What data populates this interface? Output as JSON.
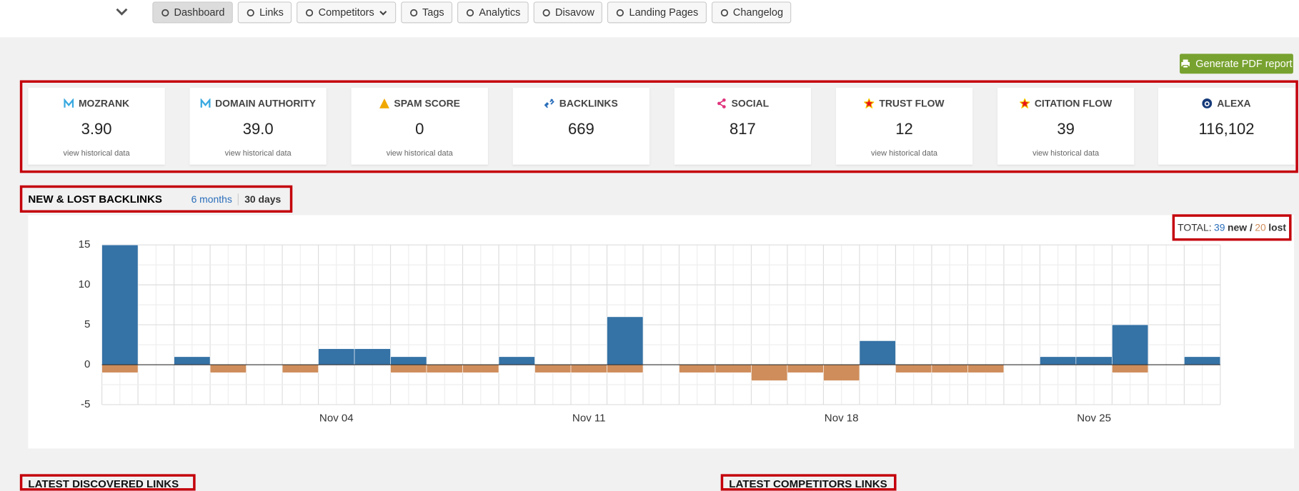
{
  "nav": {
    "items": [
      "Dashboard",
      "Links",
      "Competitors",
      "Tags",
      "Analytics",
      "Disavow",
      "Landing Pages",
      "Changelog"
    ]
  },
  "report_button": "Generate PDF report",
  "metrics": [
    {
      "label": "MOZRANK",
      "value": "3.90",
      "link": "view historical data"
    },
    {
      "label": "DOMAIN AUTHORITY",
      "value": "39.0",
      "link": "view historical data"
    },
    {
      "label": "SPAM SCORE",
      "value": 0,
      "link": "view historical data"
    },
    {
      "label": "BACKLINKS",
      "value": 669
    },
    {
      "label": "SOCIAL",
      "value": 817
    },
    {
      "label": "TRUST FLOW",
      "value": 12,
      "link": "view historical data"
    },
    {
      "label": "CITATION FLOW",
      "value": 39,
      "link": "view historical data"
    },
    {
      "label": "ALEXA",
      "value": "116,102"
    }
  ],
  "backlinks": {
    "title": "NEW & LOST BACKLINKS",
    "periods": [
      "6 months",
      "30 days"
    ],
    "total": {
      "label": "TOTAL:",
      "new": 39,
      "new_label": "new /",
      "lost": 20,
      "lost_label": "lost"
    },
    "chart": {
      "type": "bar",
      "categories": [
        null,
        null,
        null,
        null,
        null,
        null,
        "Nov 04",
        null,
        null,
        null,
        null,
        null,
        null,
        "Nov 11",
        null,
        null,
        null,
        null,
        null,
        null,
        "Nov 18",
        null,
        null,
        null,
        null,
        null,
        null,
        "Nov 25",
        null,
        null,
        null
      ],
      "series": [
        {
          "color": "#3572a5",
          "values": [
            15,
            0,
            1,
            0,
            0,
            0,
            2,
            2,
            1,
            0,
            0,
            1,
            0,
            0,
            6,
            0,
            0,
            0,
            0,
            0,
            0,
            3,
            0,
            0,
            0,
            0,
            1,
            1,
            5,
            0,
            1
          ]
        },
        {
          "color": "#cf8d5b",
          "values": [
            -1,
            0,
            0,
            -1,
            0,
            -1,
            0,
            0,
            -1,
            -1,
            -1,
            0,
            -1,
            -1,
            -1,
            0,
            -1,
            -1,
            -2,
            -1,
            -2,
            0,
            -1,
            -1,
            -1,
            0,
            0,
            0,
            -1,
            0,
            0
          ]
        }
      ],
      "ylim": [
        -5,
        15
      ],
      "yticks": [
        -5,
        0,
        5,
        10,
        15
      ],
      "grid": true
    }
  },
  "sections": [
    "LATEST DISCOVERED LINKS",
    "LATEST COMPETITORS LINKS"
  ]
}
